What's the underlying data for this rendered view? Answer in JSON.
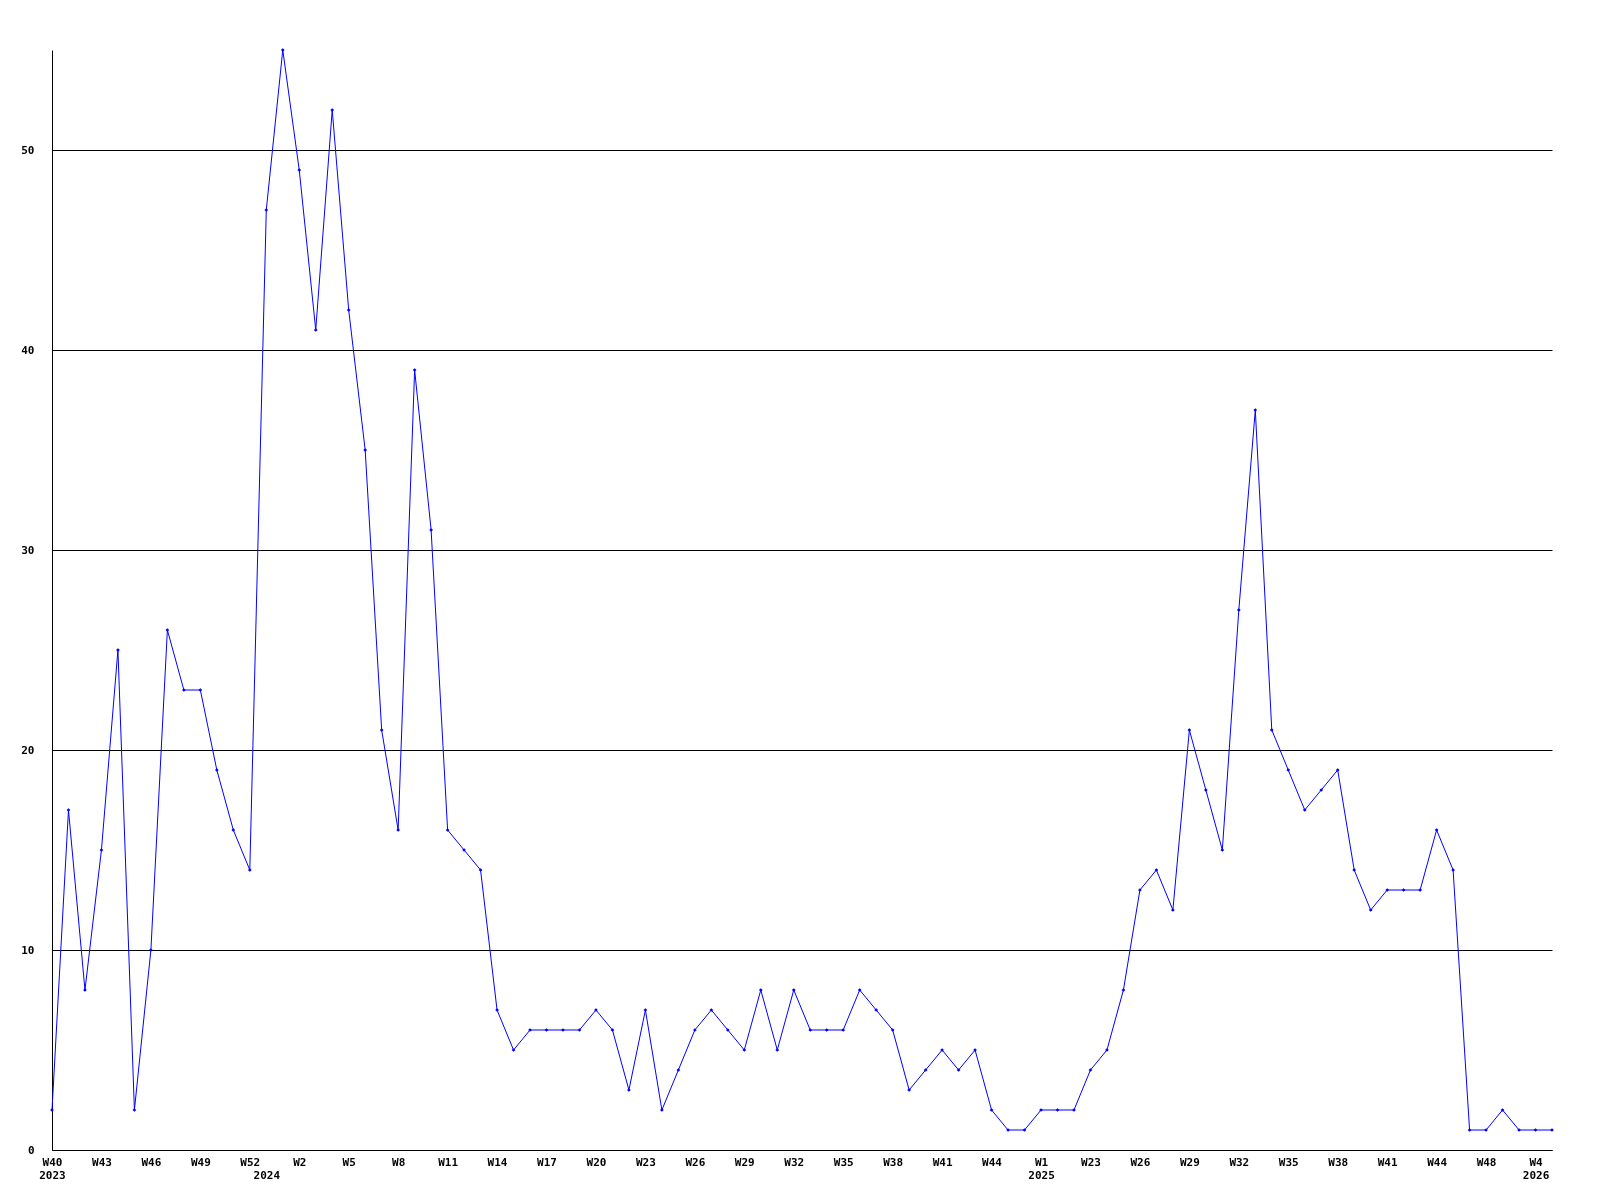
{
  "chart_data": {
    "type": "line",
    "categories": [
      "W40\n2023",
      null,
      null,
      "W43",
      null,
      null,
      "W46",
      null,
      null,
      "W49",
      null,
      null,
      "W52",
      "\n2024",
      null,
      "W2",
      null,
      null,
      "W5",
      null,
      null,
      "W8",
      null,
      null,
      "W11",
      null,
      null,
      "W14",
      null,
      null,
      "W17",
      null,
      null,
      "W20",
      null,
      null,
      "W23",
      null,
      null,
      "W26",
      null,
      null,
      "W29",
      null,
      null,
      "W32",
      null,
      null,
      "W35",
      null,
      null,
      "W38",
      null,
      null,
      "W41",
      null,
      null,
      "W44",
      null,
      null,
      "W1\n2025",
      null,
      null,
      "W23",
      null,
      null,
      "W26",
      null,
      null,
      "W29",
      null,
      null,
      "W32",
      null,
      null,
      "W35",
      null,
      null,
      "W38",
      null,
      null,
      "W41",
      null,
      null,
      "W44",
      null,
      null,
      "W48",
      null,
      null,
      "W4\n2026",
      null
    ],
    "series": [
      {
        "color": "#0000ff",
        "values": [
          2,
          17,
          8,
          15,
          25,
          2,
          10,
          26,
          23,
          23,
          19,
          16,
          14,
          47,
          55,
          49,
          41,
          52,
          42,
          35,
          21,
          16,
          39,
          31,
          16,
          15,
          14,
          7,
          5,
          6,
          6,
          6,
          6,
          7,
          6,
          3,
          7,
          2,
          4,
          6,
          7,
          6,
          5,
          8,
          5,
          8,
          6,
          6,
          6,
          8,
          7,
          6,
          3,
          4,
          5,
          4,
          5,
          2,
          1,
          1,
          2,
          2,
          2,
          4,
          5,
          8,
          13,
          14,
          12,
          21,
          18,
          15,
          27,
          37,
          21,
          19,
          17,
          18,
          19,
          14,
          12,
          13,
          13,
          13,
          16,
          14,
          1,
          1,
          2,
          1,
          1,
          1
        ]
      }
    ],
    "ylim": [
      0,
      55
    ],
    "yticks": [
      0,
      10,
      20,
      30,
      40,
      50
    ],
    "grid": "y",
    "marker": "diamond",
    "line_style": "solid"
  }
}
